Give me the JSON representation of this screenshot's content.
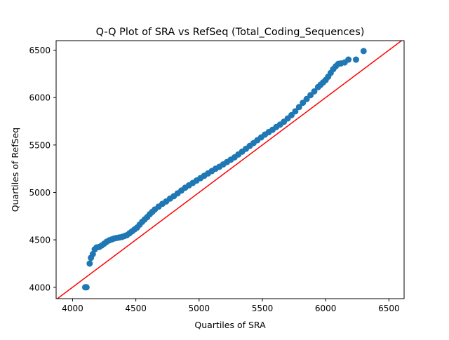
{
  "chart_data": {
    "type": "scatter",
    "title": "Q-Q Plot of SRA vs RefSeq (Total_Coding_Sequences)",
    "xlabel": "Quartiles of SRA",
    "ylabel": "Quartiles of RefSeq",
    "xlim": [
      3870,
      6620
    ],
    "ylim": [
      3880,
      6600
    ],
    "xticks": [
      4000,
      4500,
      5000,
      5500,
      6000,
      6500
    ],
    "yticks": [
      4000,
      4500,
      5000,
      5500,
      6000,
      6500
    ],
    "grid": false,
    "legend": "none",
    "series": [
      {
        "kind": "points",
        "color": "#1f77b4",
        "x": [
          4100,
          4110,
          4135,
          4145,
          4160,
          4175,
          4190,
          4210,
          4230,
          4250,
          4270,
          4290,
          4310,
          4330,
          4350,
          4370,
          4390,
          4410,
          4430,
          4450,
          4470,
          4490,
          4510,
          4530,
          4550,
          4570,
          4590,
          4610,
          4630,
          4650,
          4680,
          4710,
          4740,
          4770,
          4800,
          4830,
          4860,
          4890,
          4920,
          4950,
          4980,
          5010,
          5040,
          5070,
          5100,
          5130,
          5160,
          5190,
          5220,
          5250,
          5280,
          5310,
          5340,
          5370,
          5400,
          5430,
          5460,
          5490,
          5520,
          5550,
          5580,
          5610,
          5640,
          5670,
          5700,
          5730,
          5760,
          5790,
          5820,
          5850,
          5880,
          5910,
          5940,
          5960,
          5980,
          6000,
          6020,
          6040,
          6060,
          6080,
          6100,
          6120,
          6150,
          6180,
          6240,
          6300
        ],
        "y": [
          4000,
          4000,
          4250,
          4310,
          4350,
          4400,
          4420,
          4425,
          4440,
          4460,
          4480,
          4495,
          4505,
          4515,
          4520,
          4525,
          4530,
          4540,
          4550,
          4570,
          4590,
          4610,
          4630,
          4660,
          4690,
          4715,
          4740,
          4770,
          4795,
          4820,
          4850,
          4880,
          4905,
          4935,
          4960,
          4990,
          5020,
          5050,
          5075,
          5100,
          5125,
          5150,
          5175,
          5200,
          5225,
          5250,
          5270,
          5295,
          5320,
          5345,
          5370,
          5400,
          5430,
          5460,
          5490,
          5520,
          5550,
          5580,
          5610,
          5635,
          5660,
          5690,
          5715,
          5745,
          5780,
          5815,
          5855,
          5900,
          5945,
          5985,
          6025,
          6065,
          6110,
          6135,
          6160,
          6185,
          6220,
          6260,
          6300,
          6330,
          6355,
          6360,
          6370,
          6400,
          6400,
          6490
        ]
      },
      {
        "kind": "reference-line",
        "color": "#ff0000",
        "slope": 1,
        "intercept": 0
      }
    ]
  }
}
